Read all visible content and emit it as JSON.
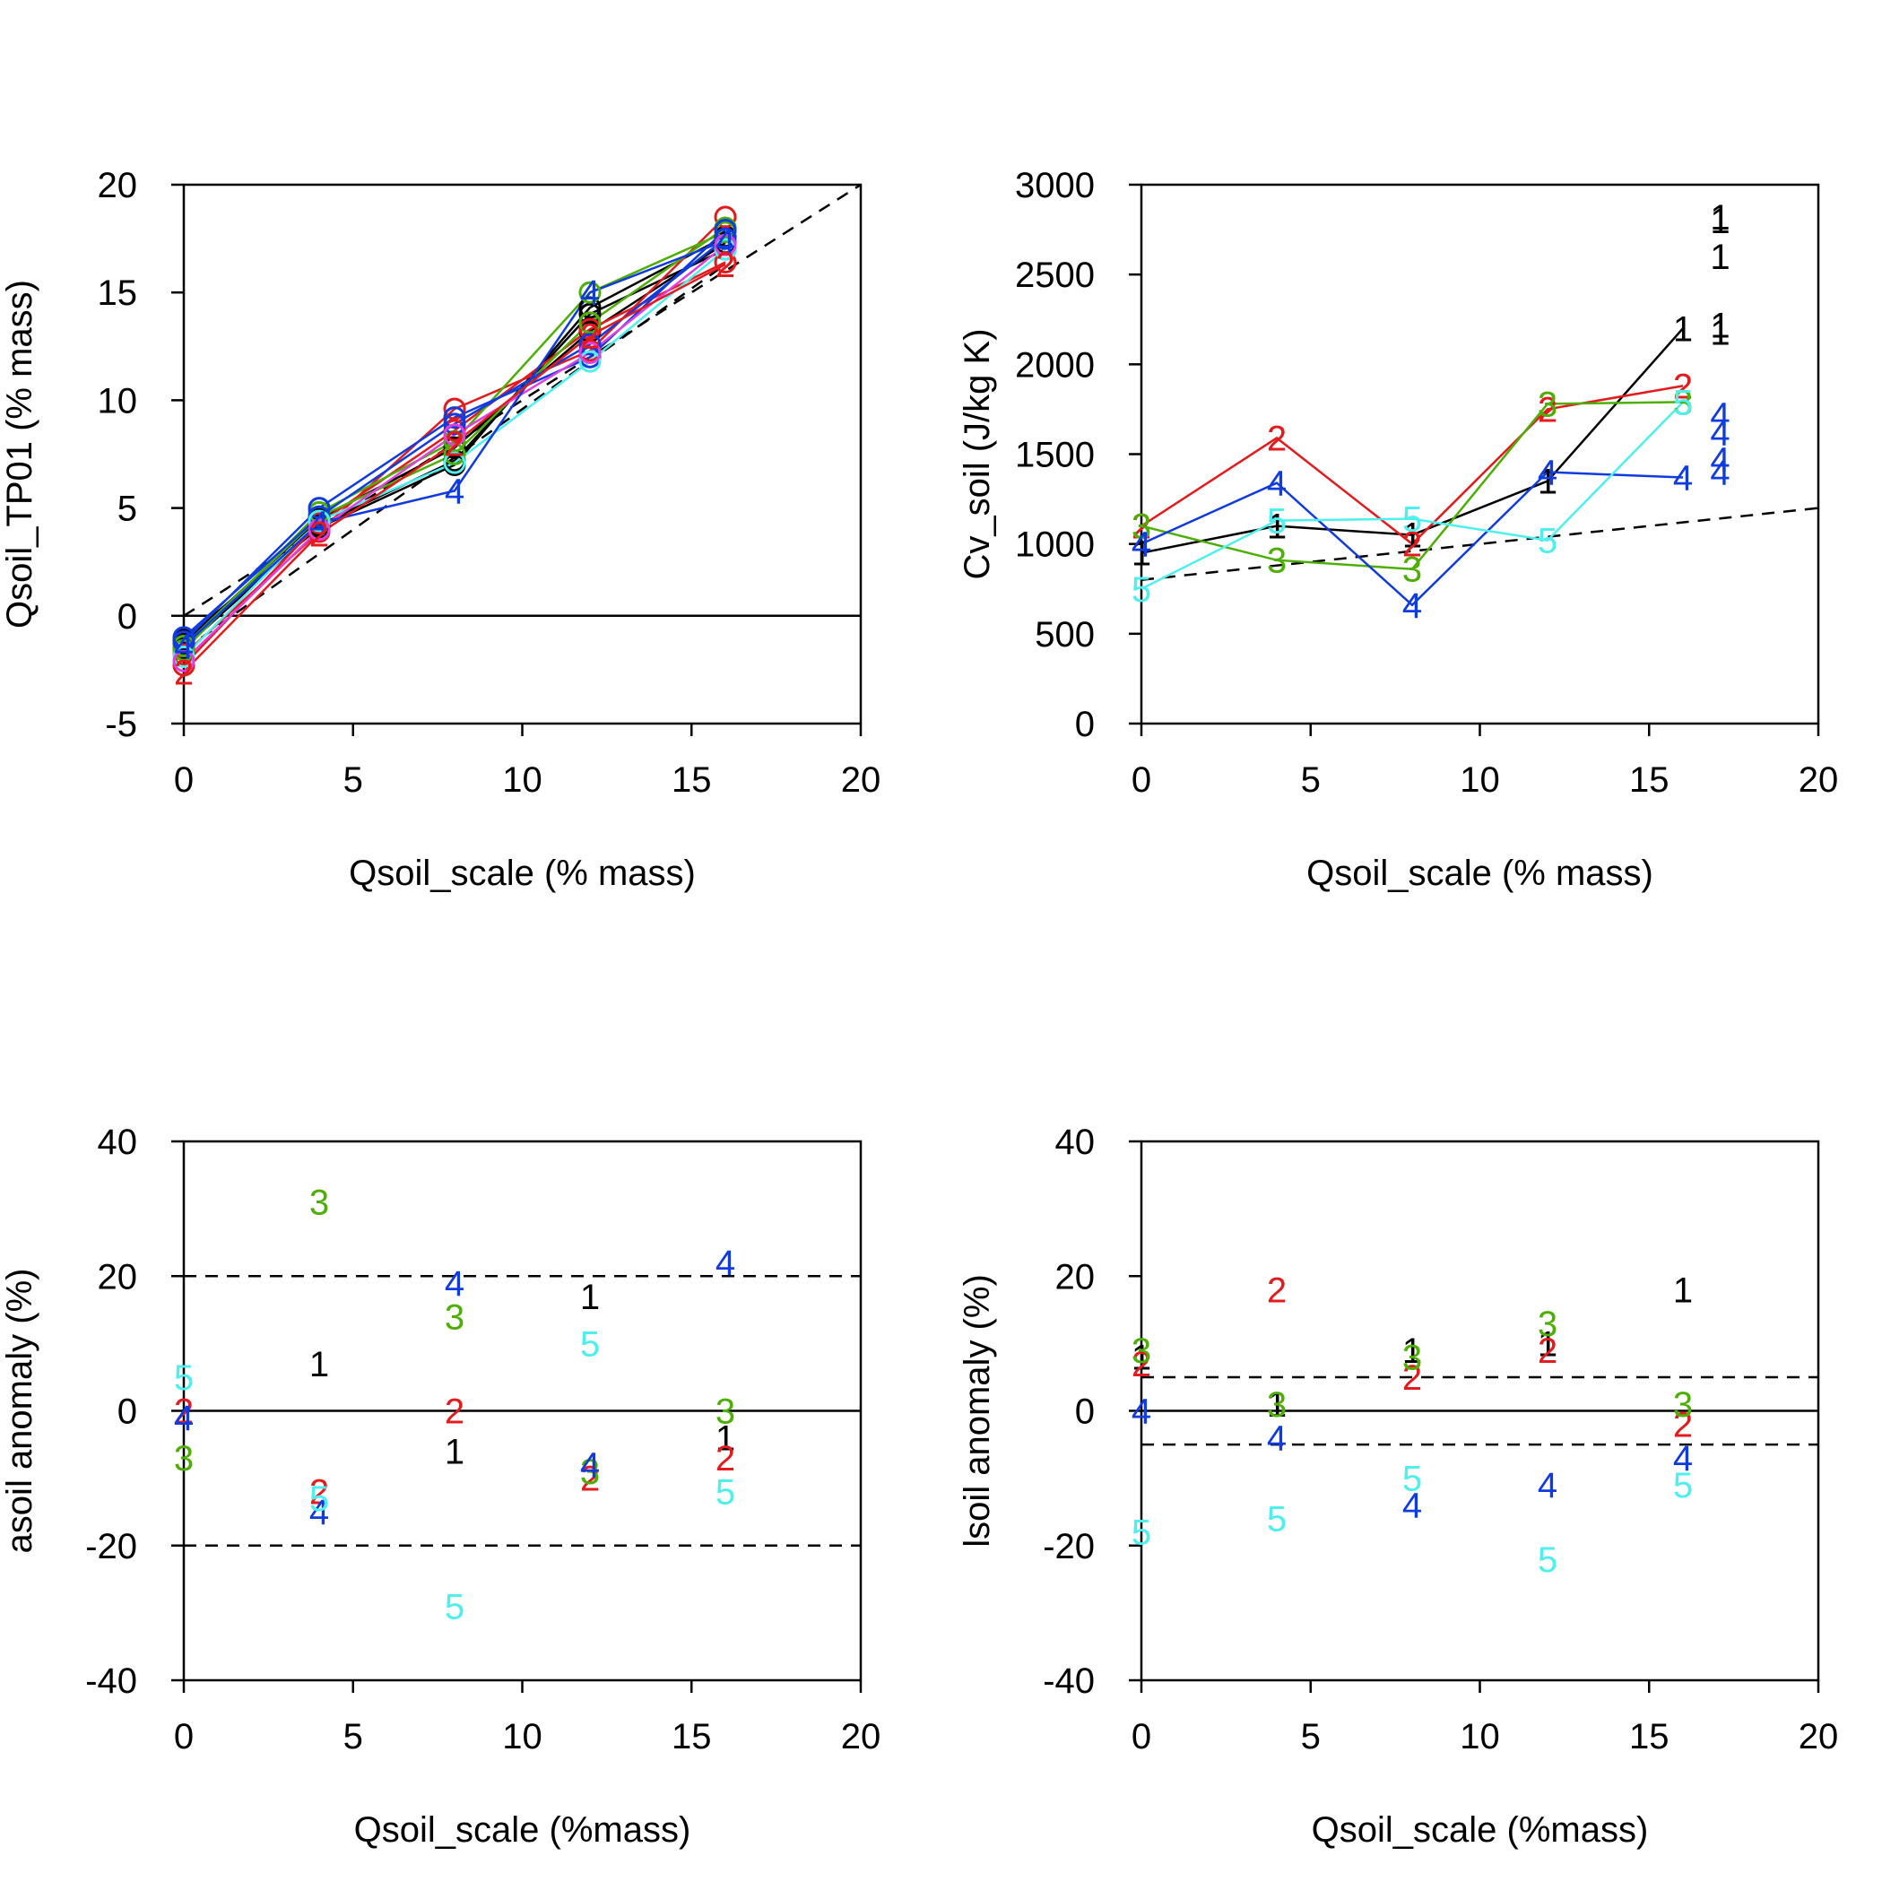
{
  "chart_data": [
    {
      "type": "line",
      "xlabel": "Qsoil_scale (% mass)",
      "ylabel": "Qsoil_TP01 (% mass)",
      "xlim": [
        0,
        20
      ],
      "ylim": [
        -5,
        20
      ],
      "xticks": [
        "0",
        "5",
        "10",
        "15",
        "20"
      ],
      "yticks": [
        "-5",
        "0",
        "5",
        "10",
        "15",
        "20"
      ],
      "hlines": [
        {
          "y": 0,
          "style": "solid"
        }
      ],
      "reflines": [
        {
          "x": [
            0,
            20
          ],
          "y": [
            0,
            20
          ],
          "style": "dashed"
        },
        {
          "x": [
            0,
            16
          ],
          "y": [
            -1.6,
            16.3
          ],
          "style": "dashed"
        }
      ],
      "series": [
        {
          "color": "#000000",
          "marker": "o",
          "x": [
            0,
            4,
            8,
            12,
            16
          ],
          "y": [
            -1.5,
            4.2,
            7.2,
            14.0,
            17.0
          ]
        },
        {
          "color": "#000000",
          "marker": "o",
          "x": [
            0,
            4,
            8,
            12,
            16
          ],
          "y": [
            -1.3,
            4.5,
            7.8,
            13.2,
            17.3
          ]
        },
        {
          "color": "#000000",
          "marker": "o",
          "x": [
            0,
            4,
            8,
            12,
            16
          ],
          "y": [
            -1.1,
            4.1,
            7.0,
            14.3,
            17.6
          ]
        },
        {
          "color": "#e41a1c",
          "marker": "o",
          "x": [
            0,
            4,
            8,
            12,
            16
          ],
          "y": [
            -1.8,
            3.9,
            9.6,
            12.3,
            18.5
          ]
        },
        {
          "color": "#e41a1c",
          "marker": "o",
          "x": [
            0,
            4,
            8,
            12,
            16
          ],
          "y": [
            -2.3,
            4.3,
            8.6,
            13.3,
            16.4
          ]
        },
        {
          "color": "#4daf06",
          "marker": "o",
          "x": [
            0,
            4,
            8,
            12,
            16
          ],
          "y": [
            -1.6,
            4.8,
            8.1,
            15.0,
            17.8
          ]
        },
        {
          "color": "#4daf06",
          "marker": "o",
          "x": [
            0,
            4,
            8,
            12,
            16
          ],
          "y": [
            -1.4,
            4.6,
            7.5,
            13.6,
            18.0
          ]
        },
        {
          "color": "#0f3be0",
          "marker": "o",
          "x": [
            0,
            4,
            8,
            12,
            16
          ],
          "y": [
            -1.2,
            5.0,
            9.2,
            12.0,
            17.9
          ]
        },
        {
          "color": "#0f3be0",
          "marker": "o",
          "x": [
            0,
            4,
            8,
            12,
            16
          ],
          "y": [
            -1.0,
            4.6,
            8.9,
            12.6,
            17.5
          ]
        },
        {
          "color": "#4eefef",
          "marker": "o",
          "x": [
            0,
            4,
            8,
            12,
            16
          ],
          "y": [
            -1.9,
            4.4,
            7.1,
            11.8,
            17.0
          ]
        },
        {
          "color": "#e040e0",
          "marker": "o",
          "x": [
            0,
            4,
            8,
            12,
            16
          ],
          "y": [
            -2.1,
            4.0,
            8.4,
            12.2,
            17.2
          ]
        },
        {
          "color": "#0f3be0",
          "marker": "4",
          "x": [
            0,
            4,
            8,
            12,
            16
          ],
          "y": [
            -1.4,
            4.3,
            5.8,
            15.0,
            17.4
          ]
        },
        {
          "color": "#e41a1c",
          "marker": "2",
          "x": [
            0,
            4,
            8,
            12,
            16
          ],
          "y": [
            -2.6,
            3.8,
            8.0,
            13.0,
            16.3
          ]
        }
      ]
    },
    {
      "type": "line",
      "xlabel": "Qsoil_scale (% mass)",
      "ylabel": "Cv_soil (J/kg K)",
      "xlim": [
        0,
        20
      ],
      "ylim": [
        0,
        3000
      ],
      "xticks": [
        "0",
        "5",
        "10",
        "15",
        "20"
      ],
      "yticks": [
        "0",
        "500",
        "1000",
        "1500",
        "2000",
        "2500",
        "3000"
      ],
      "reflines": [
        {
          "x": [
            0,
            20
          ],
          "y": [
            800,
            1200
          ],
          "style": "dashed"
        }
      ],
      "series": [
        {
          "color": "#000000",
          "marker": "1",
          "x": [
            0,
            4,
            8,
            12,
            16
          ],
          "y": [
            950,
            1100,
            1050,
            1350,
            2200
          ]
        },
        {
          "color": "#e41a1c",
          "marker": "2",
          "x": [
            0,
            4,
            8,
            12,
            16
          ],
          "y": [
            1100,
            1590,
            1000,
            1750,
            1880
          ]
        },
        {
          "color": "#4daf06",
          "marker": "3",
          "x": [
            0,
            4,
            8,
            12,
            16
          ],
          "y": [
            1100,
            910,
            860,
            1780,
            1790
          ]
        },
        {
          "color": "#0f3be0",
          "marker": "4",
          "x": [
            0,
            4,
            8,
            12,
            16
          ],
          "y": [
            1000,
            1340,
            660,
            1400,
            1370
          ]
        },
        {
          "color": "#4eefef",
          "marker": "5",
          "x": [
            0,
            4,
            8,
            12,
            16
          ],
          "y": [
            750,
            1130,
            1140,
            1020,
            1790
          ]
        }
      ],
      "extra_points": [
        {
          "color": "#000000",
          "label": "1",
          "x": [
            17.1,
            17.1,
            17.1,
            17.1,
            17.1
          ],
          "y": [
            2820,
            2800,
            2600,
            2220,
            2180
          ]
        },
        {
          "color": "#0f3be0",
          "label": "4",
          "x": [
            17.1,
            17.1,
            17.1,
            17.1
          ],
          "y": [
            1720,
            1620,
            1470,
            1400
          ]
        }
      ]
    },
    {
      "type": "scatter",
      "xlabel": "Qsoil_scale (%mass)",
      "ylabel": "asoil anomaly (%)",
      "xlim": [
        0,
        20
      ],
      "ylim": [
        -40,
        40
      ],
      "xticks": [
        "0",
        "5",
        "10",
        "15",
        "20"
      ],
      "yticks": [
        "-40",
        "-20",
        "0",
        "20",
        "40"
      ],
      "hlines": [
        {
          "y": 0,
          "style": "solid"
        },
        {
          "y": 20,
          "style": "dashed"
        },
        {
          "y": -20,
          "style": "dashed"
        }
      ],
      "series": [
        {
          "color": "#000000",
          "label": "1",
          "x": [
            4,
            8,
            12,
            16
          ],
          "y": [
            7,
            -6,
            17,
            -4
          ]
        },
        {
          "color": "#e41a1c",
          "label": "2",
          "x": [
            0,
            4,
            8,
            12,
            16
          ],
          "y": [
            0,
            -12,
            0,
            -10,
            -7
          ]
        },
        {
          "color": "#4daf06",
          "label": "3",
          "x": [
            0,
            4,
            8,
            12,
            16
          ],
          "y": [
            -7,
            31,
            14,
            -9,
            0
          ]
        },
        {
          "color": "#0f3be0",
          "label": "4",
          "x": [
            0,
            4,
            8,
            12,
            16
          ],
          "y": [
            -1,
            -15,
            19,
            -8,
            22
          ]
        },
        {
          "color": "#4eefef",
          "label": "5",
          "x": [
            0,
            4,
            8,
            12,
            16
          ],
          "y": [
            5,
            -13,
            -29,
            10,
            -12
          ]
        }
      ]
    },
    {
      "type": "scatter",
      "xlabel": "Qsoil_scale (%mass)",
      "ylabel": "lsoil anomaly (%)",
      "xlim": [
        0,
        20
      ],
      "ylim": [
        -40,
        40
      ],
      "xticks": [
        "0",
        "5",
        "10",
        "15",
        "20"
      ],
      "yticks": [
        "-40",
        "-20",
        "0",
        "20",
        "40"
      ],
      "hlines": [
        {
          "y": 0,
          "style": "solid"
        },
        {
          "y": 5,
          "style": "dashed"
        },
        {
          "y": -5,
          "style": "dashed"
        }
      ],
      "series": [
        {
          "color": "#000000",
          "label": "1",
          "x": [
            0,
            4,
            8,
            12,
            16
          ],
          "y": [
            8,
            1,
            9,
            10,
            18
          ]
        },
        {
          "color": "#e41a1c",
          "label": "2",
          "x": [
            0,
            4,
            8,
            12,
            16
          ],
          "y": [
            7,
            18,
            5,
            9,
            -2
          ]
        },
        {
          "color": "#4daf06",
          "label": "3",
          "x": [
            0,
            4,
            8,
            12,
            16
          ],
          "y": [
            9,
            1,
            8,
            13,
            1
          ]
        },
        {
          "color": "#0f3be0",
          "label": "4",
          "x": [
            0,
            4,
            8,
            12,
            16
          ],
          "y": [
            0,
            -4,
            -14,
            -11,
            -7
          ]
        },
        {
          "color": "#4eefef",
          "label": "5",
          "x": [
            0,
            4,
            8,
            12,
            16
          ],
          "y": [
            -18,
            -16,
            -10,
            -22,
            -11
          ]
        }
      ]
    }
  ]
}
